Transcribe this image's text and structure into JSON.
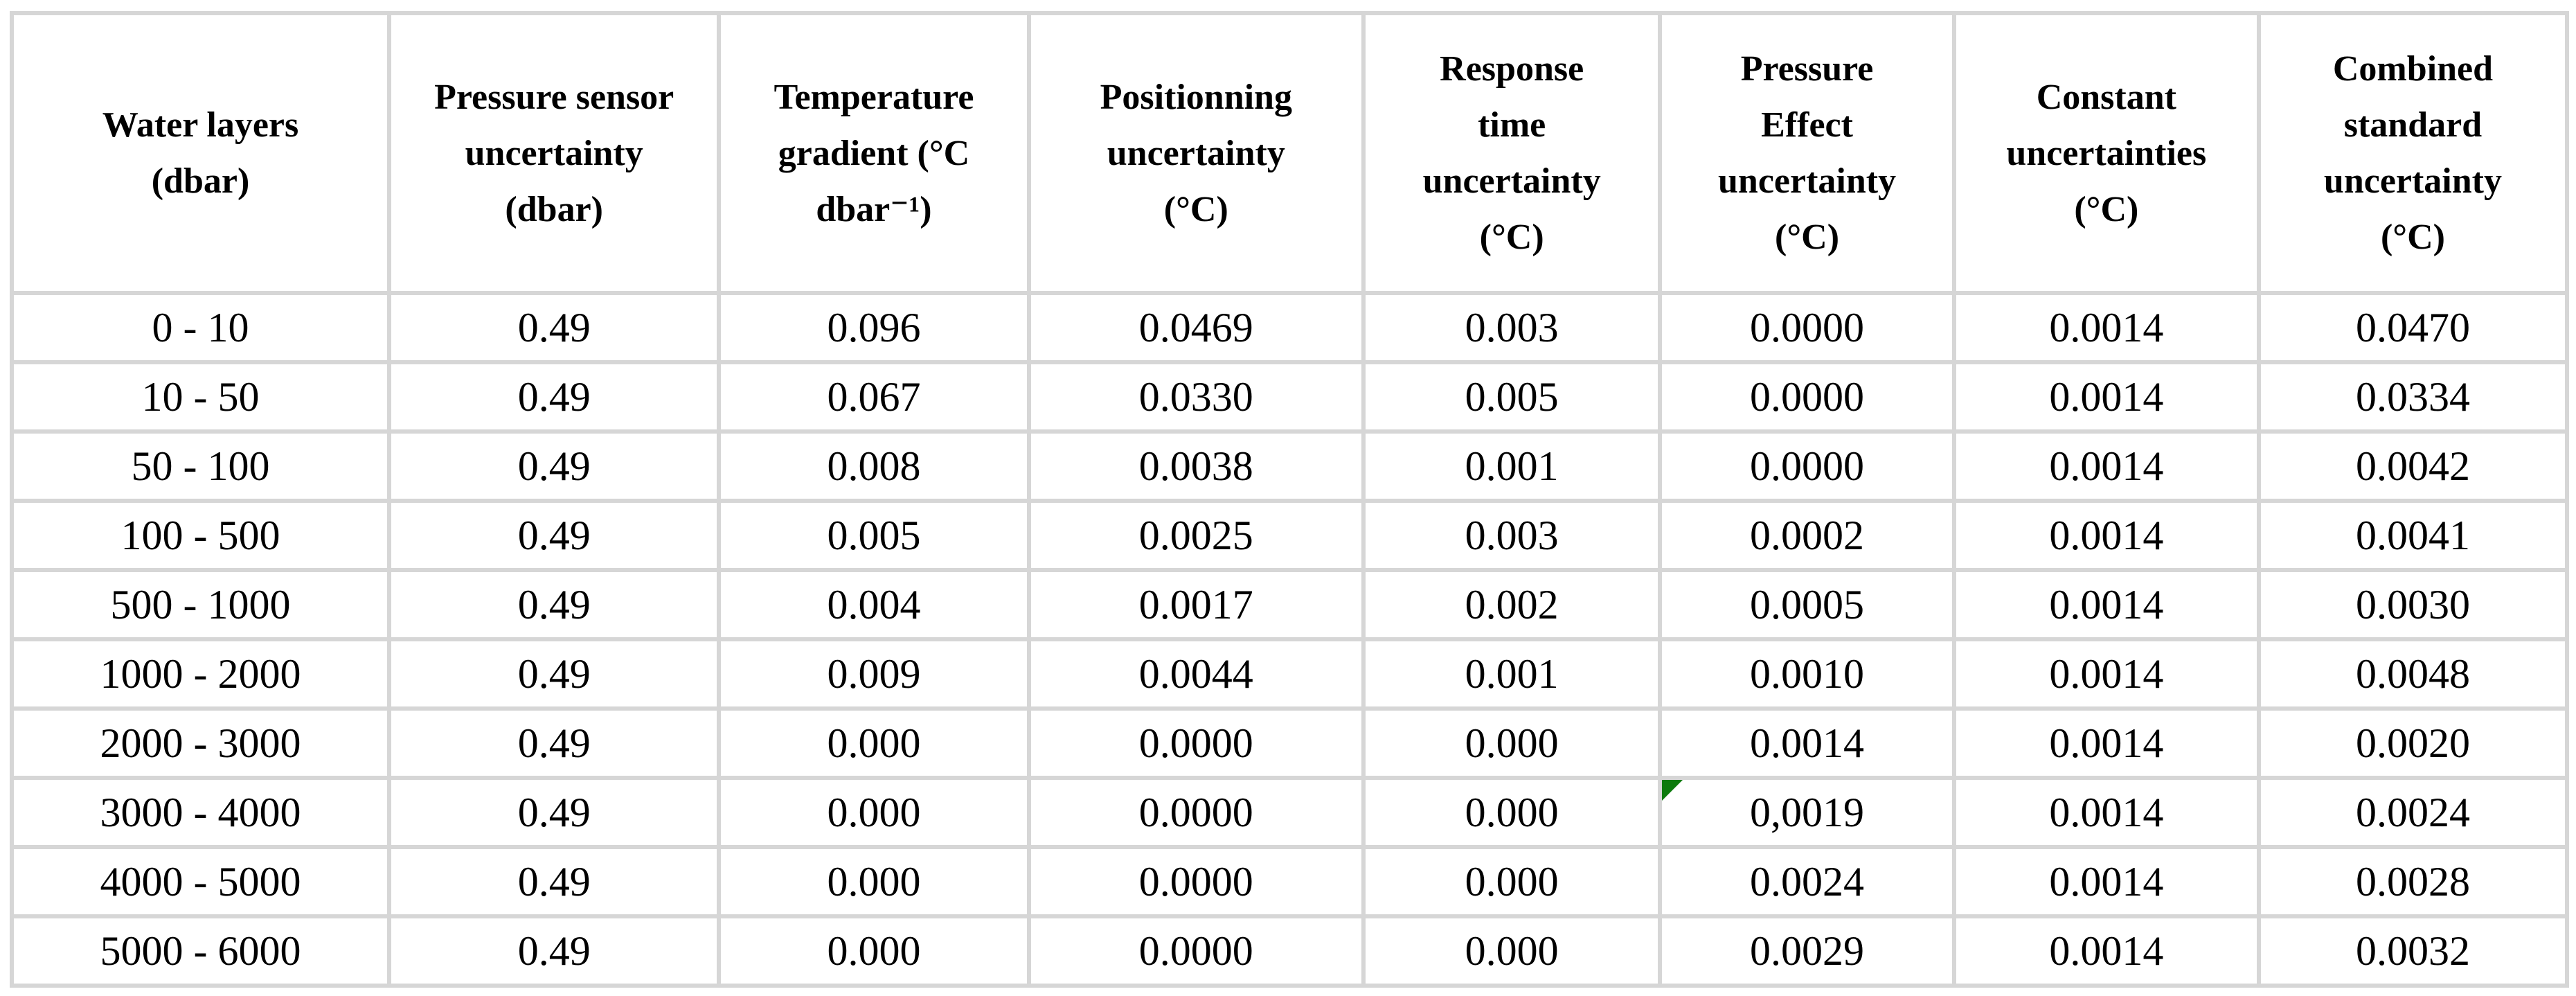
{
  "table": {
    "columns": [
      {
        "id": "water-layers",
        "lines": [
          "Water layers",
          "(dbar)"
        ]
      },
      {
        "id": "pressure-sensor",
        "lines": [
          "Pressure sensor",
          "uncertainty",
          "(dbar)"
        ]
      },
      {
        "id": "temperature-gradient",
        "lines": [
          "Temperature",
          "gradient (°C",
          "dbar⁻¹)"
        ]
      },
      {
        "id": "positionning",
        "lines": [
          "Positionning",
          "uncertainty",
          "(°C)"
        ]
      },
      {
        "id": "response-time",
        "lines": [
          "Response",
          "time",
          "uncertainty",
          "(°C)"
        ]
      },
      {
        "id": "pressure-effect",
        "lines": [
          "Pressure",
          "Effect",
          "uncertainty",
          "(°C)"
        ]
      },
      {
        "id": "constant-uncertainties",
        "lines": [
          "Constant",
          "uncertainties",
          "(°C)"
        ]
      },
      {
        "id": "combined-standard",
        "lines": [
          "Combined",
          "standard",
          "uncertainty",
          "(°C)"
        ]
      }
    ],
    "rows": [
      {
        "cells": [
          "0 - 10",
          "0.49",
          "0.096",
          "0.0469",
          "0.003",
          "0.0000",
          "0.0014",
          "0.0470"
        ]
      },
      {
        "cells": [
          "10 - 50",
          "0.49",
          "0.067",
          "0.0330",
          "0.005",
          "0.0000",
          "0.0014",
          "0.0334"
        ]
      },
      {
        "cells": [
          "50 - 100",
          "0.49",
          "0.008",
          "0.0038",
          "0.001",
          "0.0000",
          "0.0014",
          "0.0042"
        ]
      },
      {
        "cells": [
          "100 - 500",
          "0.49",
          "0.005",
          "0.0025",
          "0.003",
          "0.0002",
          "0.0014",
          "0.0041"
        ]
      },
      {
        "cells": [
          "500 - 1000",
          "0.49",
          "0.004",
          "0.0017",
          "0.002",
          "0.0005",
          "0.0014",
          "0.0030"
        ]
      },
      {
        "cells": [
          "1000 - 2000",
          "0.49",
          "0.009",
          "0.0044",
          "0.001",
          "0.0010",
          "0.0014",
          "0.0048"
        ]
      },
      {
        "cells": [
          "2000 - 3000",
          "0.49",
          "0.000",
          "0.0000",
          "0.000",
          "0.0014",
          "0.0014",
          "0.0020"
        ]
      },
      {
        "cells": [
          "3000 - 4000",
          "0.49",
          "0.000",
          "0.0000",
          "0.000",
          "0,0019",
          "0.0014",
          "0.0024"
        ],
        "marker": {
          "cell": 5,
          "type": "error-triangle",
          "color": "#0c7a0c"
        }
      },
      {
        "cells": [
          "4000 - 5000",
          "0.49",
          "0.000",
          "0.0000",
          "0.000",
          "0.0024",
          "0.0014",
          "0.0028"
        ]
      },
      {
        "cells": [
          "5000 - 6000",
          "0.49",
          "0.000",
          "0.0000",
          "0.000",
          "0.0029",
          "0.0014",
          "0.0032"
        ]
      }
    ]
  },
  "colors": {
    "grid_border": "#d6d6d6",
    "error_triangle_green": "#0c7a0c",
    "text": "#000000",
    "background": "#ffffff"
  },
  "chart_data": {
    "type": "table",
    "title": "Temperature measurement uncertainty budget by water layer",
    "categories": [
      "0 - 10",
      "10 - 50",
      "50 - 100",
      "100 - 500",
      "500 - 1000",
      "1000 - 2000",
      "2000 - 3000",
      "3000 - 4000",
      "4000 - 5000",
      "5000 - 6000"
    ],
    "series": [
      {
        "name": "Pressure sensor uncertainty (dbar)",
        "values": [
          0.49,
          0.49,
          0.49,
          0.49,
          0.49,
          0.49,
          0.49,
          0.49,
          0.49,
          0.49
        ]
      },
      {
        "name": "Temperature gradient (°C dbar⁻¹)",
        "values": [
          0.096,
          0.067,
          0.008,
          0.005,
          0.004,
          0.009,
          0.0,
          0.0,
          0.0,
          0.0
        ]
      },
      {
        "name": "Positionning uncertainty (°C)",
        "values": [
          0.0469,
          0.033,
          0.0038,
          0.0025,
          0.0017,
          0.0044,
          0.0,
          0.0,
          0.0,
          0.0
        ]
      },
      {
        "name": "Response time uncertainty (°C)",
        "values": [
          0.003,
          0.005,
          0.001,
          0.003,
          0.002,
          0.001,
          0.0,
          0.0,
          0.0,
          0.0
        ]
      },
      {
        "name": "Pressure Effect uncertainty (°C)",
        "values": [
          0.0,
          0.0,
          0.0,
          0.0002,
          0.0005,
          0.001,
          0.0014,
          0.0019,
          0.0024,
          0.0029
        ]
      },
      {
        "name": "Constant uncertainties (°C)",
        "values": [
          0.0014,
          0.0014,
          0.0014,
          0.0014,
          0.0014,
          0.0014,
          0.0014,
          0.0014,
          0.0014,
          0.0014
        ]
      },
      {
        "name": "Combined standard uncertainty (°C)",
        "values": [
          0.047,
          0.0334,
          0.0042,
          0.0041,
          0.003,
          0.0048,
          0.002,
          0.0024,
          0.0028,
          0.0032
        ]
      }
    ]
  }
}
